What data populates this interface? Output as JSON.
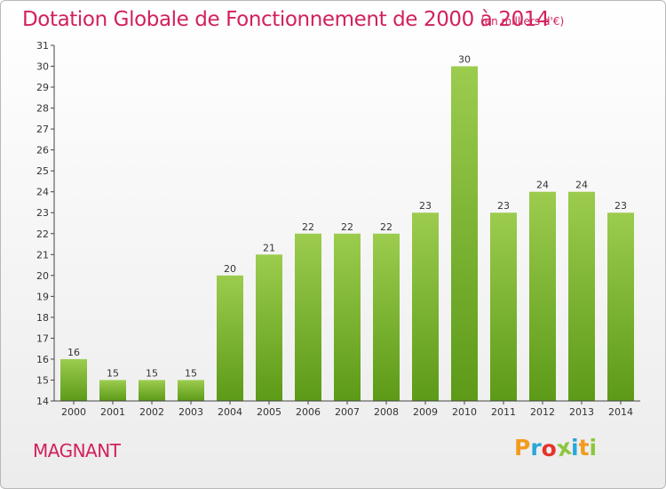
{
  "title": "Dotation Globale de Fonctionnement de 2000 à 2014",
  "subtitle": "(en milliers d'€)",
  "commune": "MAGNANT",
  "logo": {
    "letters": [
      "P",
      "r",
      "o",
      "x",
      "i",
      "t",
      "i"
    ],
    "colors": [
      "#f29b1e",
      "#2aa6d9",
      "#e5342a",
      "#8cc63f",
      "#2aa6d9",
      "#f29b1e",
      "#8cc63f"
    ]
  },
  "colors": {
    "bar_top": "#9ccc4e",
    "bar_bottom": "#5c9a17",
    "accent": "#d2205e"
  },
  "chart_data": {
    "type": "bar",
    "categories": [
      "2000",
      "2001",
      "2002",
      "2003",
      "2004",
      "2005",
      "2006",
      "2007",
      "2008",
      "2009",
      "2010",
      "2011",
      "2012",
      "2013",
      "2014"
    ],
    "values": [
      16,
      15,
      15,
      15,
      20,
      21,
      22,
      22,
      22,
      23,
      30,
      23,
      24,
      24,
      23
    ],
    "ylim": [
      14,
      31
    ],
    "yticks": [
      14,
      15,
      16,
      17,
      18,
      19,
      20,
      21,
      22,
      23,
      24,
      25,
      26,
      27,
      28,
      29,
      30,
      31
    ],
    "grid": false,
    "data_labels": true
  }
}
